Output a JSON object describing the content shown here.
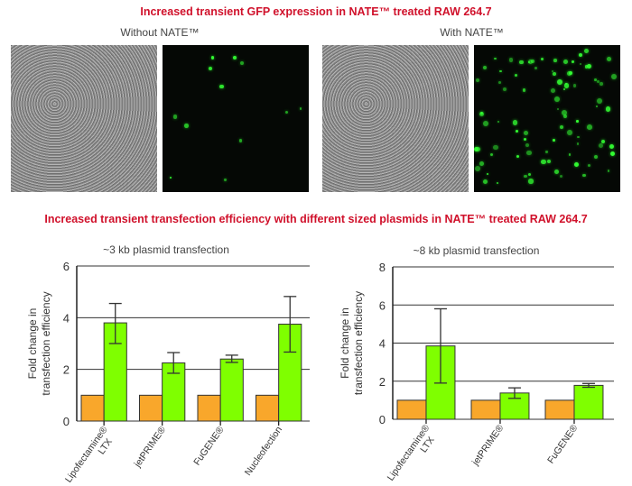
{
  "header": {
    "title": "Increased transient GFP expression in NATE™ treated RAW 264.7"
  },
  "images": {
    "left_label": "Without NATE™",
    "right_label": "With NATE™"
  },
  "section2": {
    "title": "Increased transient transfection efficiency with different sized plasmids in NATE™ treated RAW 264.7"
  },
  "colors": {
    "control": "#f9a72b",
    "nate": "#7fff00",
    "title_red": "#d0112b"
  },
  "chart_data": [
    {
      "type": "bar",
      "title": "~3 kb plasmid transfection",
      "ylabel": "Fold change in transfection efficiency",
      "ylim": [
        0,
        6
      ],
      "yticks": [
        "0",
        "2",
        "4",
        "6"
      ],
      "grid": true,
      "categories": [
        "Lipofectamine® LTX",
        "jetPRIME®",
        "FuGENE®",
        "Nucleofection"
      ],
      "series": [
        {
          "values": [
            1,
            1,
            1,
            1
          ],
          "color": "#f9a72b"
        },
        {
          "values": [
            3.8,
            2.25,
            2.4,
            3.75
          ],
          "error_low": [
            3.0,
            1.85,
            2.27,
            2.67
          ],
          "error_high": [
            4.55,
            2.65,
            2.55,
            4.82
          ],
          "color": "#7fff00"
        }
      ]
    },
    {
      "type": "bar",
      "title": "~8 kb plasmid transfection",
      "ylabel": "Fold change in transfection efficiency",
      "ylim": [
        0,
        8
      ],
      "yticks": [
        "0",
        "2",
        "4",
        "6",
        "8"
      ],
      "grid": true,
      "categories": [
        "Lipofectamine® LTX",
        "jetPRIME®",
        "FuGENE®"
      ],
      "series": [
        {
          "values": [
            1,
            1,
            1
          ],
          "color": "#f9a72b"
        },
        {
          "values": [
            3.85,
            1.38,
            1.78
          ],
          "error_low": [
            1.9,
            1.1,
            1.68
          ],
          "error_high": [
            5.8,
            1.65,
            1.88
          ],
          "color": "#7fff00"
        }
      ]
    }
  ]
}
